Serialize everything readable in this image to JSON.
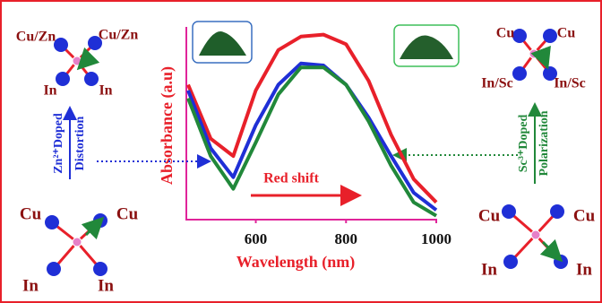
{
  "chart_data": {
    "type": "line",
    "x_label": "Wavelength (nm)",
    "y_label": "Absorbance (a.u)",
    "x": [
      450,
      500,
      550,
      600,
      650,
      700,
      750,
      800,
      850,
      900,
      950,
      1000
    ],
    "xlim": [
      450,
      1000
    ],
    "xticks": [
      600,
      800,
      1000
    ],
    "ylim": [
      0,
      1
    ],
    "series": [
      {
        "color": "#e8202a",
        "values": [
          0.7,
          0.42,
          0.33,
          0.67,
          0.88,
          0.95,
          0.96,
          0.91,
          0.72,
          0.44,
          0.21,
          0.09
        ]
      },
      {
        "color": "#1f2fd6",
        "values": [
          0.67,
          0.37,
          0.22,
          0.49,
          0.7,
          0.81,
          0.8,
          0.7,
          0.53,
          0.33,
          0.14,
          0.05
        ]
      },
      {
        "color": "#21883a",
        "values": [
          0.63,
          0.33,
          0.16,
          0.4,
          0.65,
          0.79,
          0.79,
          0.7,
          0.51,
          0.28,
          0.09,
          0.02
        ]
      }
    ]
  },
  "annotations": {
    "red_shift": "Red shift",
    "zn_doped": "Zn²⁺Doped",
    "distortion": "Distortion",
    "sc_doped": "Sc³⁺Doped",
    "polarization": "Polarization"
  },
  "structures": [
    {
      "labels": [
        "Cu/Zn",
        "Cu/Zn",
        "In",
        "In"
      ]
    },
    {
      "labels": [
        "Cu",
        "Cu",
        "In/Sc",
        "In/Sc"
      ]
    },
    {
      "labels": [
        "Cu",
        "Cu",
        "In",
        "In"
      ]
    },
    {
      "labels": [
        "Cu",
        "Cu",
        "In",
        "In"
      ]
    }
  ]
}
